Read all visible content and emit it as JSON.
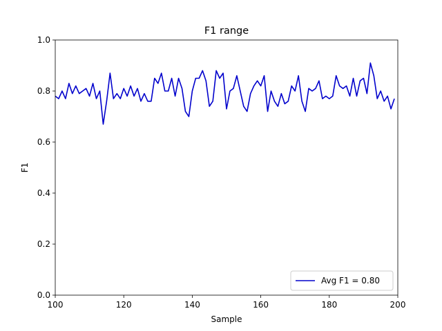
{
  "chart_data": {
    "type": "line",
    "title": "F1 range",
    "xlabel": "Sample",
    "ylabel": "F1",
    "xlim": [
      100,
      200
    ],
    "ylim": [
      0.0,
      1.0
    ],
    "xticks": [
      100,
      120,
      140,
      160,
      180,
      200
    ],
    "yticks": [
      0.0,
      0.2,
      0.4,
      0.6,
      0.8,
      1.0
    ],
    "grid": false,
    "legend_position": "lower-right",
    "series": [
      {
        "name": "Avg F1 = 0.80",
        "color": "#0000cc",
        "x": [
          100,
          101,
          102,
          103,
          104,
          105,
          106,
          107,
          108,
          109,
          110,
          111,
          112,
          113,
          114,
          115,
          116,
          117,
          118,
          119,
          120,
          121,
          122,
          123,
          124,
          125,
          126,
          127,
          128,
          129,
          130,
          131,
          132,
          133,
          134,
          135,
          136,
          137,
          138,
          139,
          140,
          141,
          142,
          143,
          144,
          145,
          146,
          147,
          148,
          149,
          150,
          151,
          152,
          153,
          154,
          155,
          156,
          157,
          158,
          159,
          160,
          161,
          162,
          163,
          164,
          165,
          166,
          167,
          168,
          169,
          170,
          171,
          172,
          173,
          174,
          175,
          176,
          177,
          178,
          179,
          180,
          181,
          182,
          183,
          184,
          185,
          186,
          187,
          188,
          189,
          190,
          191,
          192,
          193,
          194,
          195,
          196,
          197,
          198,
          199
        ],
        "values": [
          0.78,
          0.77,
          0.8,
          0.77,
          0.83,
          0.79,
          0.82,
          0.79,
          0.8,
          0.81,
          0.78,
          0.83,
          0.77,
          0.8,
          0.67,
          0.76,
          0.87,
          0.77,
          0.79,
          0.77,
          0.81,
          0.78,
          0.82,
          0.78,
          0.81,
          0.76,
          0.79,
          0.76,
          0.76,
          0.85,
          0.83,
          0.87,
          0.8,
          0.8,
          0.85,
          0.78,
          0.85,
          0.81,
          0.72,
          0.7,
          0.8,
          0.85,
          0.85,
          0.88,
          0.84,
          0.74,
          0.76,
          0.88,
          0.85,
          0.87,
          0.73,
          0.8,
          0.81,
          0.86,
          0.8,
          0.74,
          0.72,
          0.79,
          0.82,
          0.84,
          0.82,
          0.86,
          0.72,
          0.8,
          0.76,
          0.74,
          0.79,
          0.75,
          0.76,
          0.82,
          0.8,
          0.86,
          0.76,
          0.72,
          0.81,
          0.8,
          0.81,
          0.84,
          0.77,
          0.78,
          0.77,
          0.78,
          0.86,
          0.82,
          0.81,
          0.82,
          0.78,
          0.85,
          0.78,
          0.84,
          0.85,
          0.79,
          0.91,
          0.86,
          0.77,
          0.8,
          0.76,
          0.78,
          0.73,
          0.77
        ]
      }
    ]
  }
}
